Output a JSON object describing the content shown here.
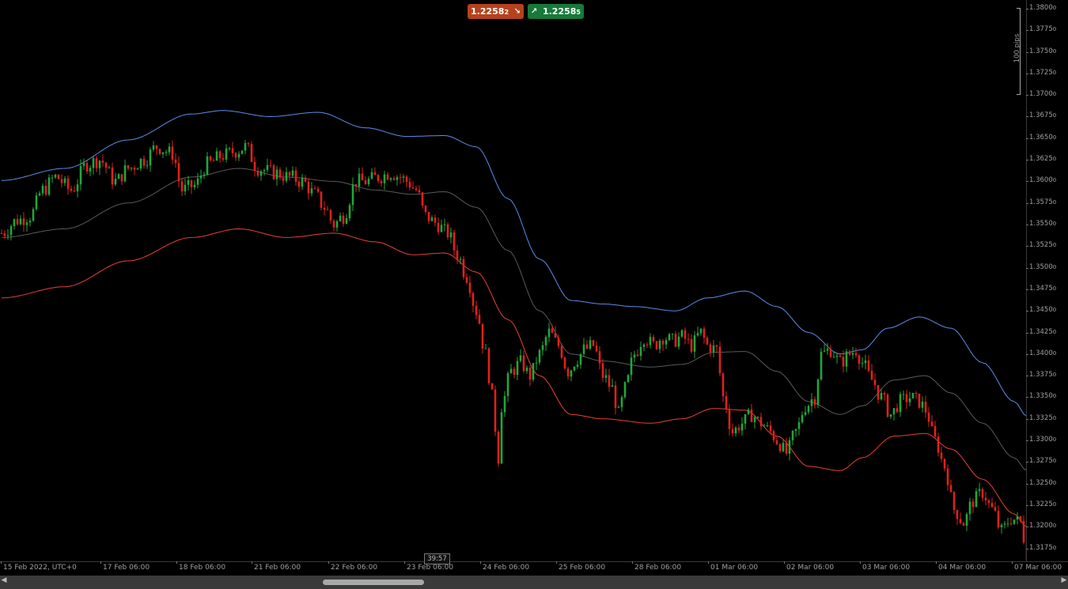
{
  "trade_buttons": {
    "sell_price": "1.2258",
    "sell_price_super": "2",
    "buy_price": "1.2258",
    "buy_price_super": "5",
    "sell_icon": "arrow-down-right-icon",
    "buy_icon": "arrow-up-right-icon",
    "sell_color": "#b5421d",
    "buy_color": "#17793a"
  },
  "pips_scale": "100 pips",
  "countdown": "39:57",
  "scrollbar_icons": {
    "left": "triangle-left-icon",
    "right": "triangle-right-icon"
  },
  "chart_data": {
    "type": "candlestick",
    "ylim": [
      1.316,
      1.381
    ],
    "y_ticks": [
      {
        "value": 1.38,
        "label": "1.3800",
        "sub": "0"
      },
      {
        "value": 1.3775,
        "label": "1.3775",
        "sub": "0"
      },
      {
        "value": 1.375,
        "label": "1.3750",
        "sub": "0"
      },
      {
        "value": 1.3725,
        "label": "1.3725",
        "sub": "0"
      },
      {
        "value": 1.37,
        "label": "1.3700",
        "sub": "0"
      },
      {
        "value": 1.3675,
        "label": "1.3675",
        "sub": "0"
      },
      {
        "value": 1.365,
        "label": "1.3650",
        "sub": "0"
      },
      {
        "value": 1.3625,
        "label": "1.3625",
        "sub": "0"
      },
      {
        "value": 1.36,
        "label": "1.3600",
        "sub": "0"
      },
      {
        "value": 1.3575,
        "label": "1.3575",
        "sub": "0"
      },
      {
        "value": 1.355,
        "label": "1.3550",
        "sub": "0"
      },
      {
        "value": 1.3525,
        "label": "1.3525",
        "sub": "0"
      },
      {
        "value": 1.35,
        "label": "1.3500",
        "sub": "0"
      },
      {
        "value": 1.3475,
        "label": "1.3475",
        "sub": "0"
      },
      {
        "value": 1.345,
        "label": "1.3450",
        "sub": "0"
      },
      {
        "value": 1.3425,
        "label": "1.3425",
        "sub": "0"
      },
      {
        "value": 1.34,
        "label": "1.3400",
        "sub": "0"
      },
      {
        "value": 1.3375,
        "label": "1.3375",
        "sub": "0"
      },
      {
        "value": 1.335,
        "label": "1.3350",
        "sub": "0"
      },
      {
        "value": 1.3325,
        "label": "1.3325",
        "sub": "0"
      },
      {
        "value": 1.33,
        "label": "1.3300",
        "sub": "0"
      },
      {
        "value": 1.3275,
        "label": "1.3275",
        "sub": "0"
      },
      {
        "value": 1.325,
        "label": "1.3250",
        "sub": "0"
      },
      {
        "value": 1.3225,
        "label": "1.3225",
        "sub": "0"
      },
      {
        "value": 1.32,
        "label": "1.3200",
        "sub": "0"
      },
      {
        "value": 1.3175,
        "label": "1.3175",
        "sub": "0"
      }
    ],
    "x_labels": [
      "15 Feb 2022, UTC+0",
      "17 Feb 06:00",
      "18 Feb 06:00",
      "21 Feb 06:00",
      "22 Feb 06:00",
      "23 Feb 06:00",
      "24 Feb 06:00",
      "25 Feb 06:00",
      "28 Feb 06:00",
      "01 Mar 06:00",
      "02 Mar 06:00",
      "03 Mar 06:00",
      "04 Mar 06:00",
      "07 Mar 06:00"
    ],
    "colors": {
      "up": "#1fa83a",
      "down": "#e0211b",
      "upper_band": "#5b8de8",
      "middle_band": "#5a5a5a",
      "lower_band": "#e8403a",
      "background": "#000000"
    },
    "close_path": [
      [
        0,
        1.354
      ],
      [
        5,
        1.3555
      ],
      [
        9,
        1.356
      ],
      [
        13,
        1.359
      ],
      [
        17,
        1.3605
      ],
      [
        22,
        1.359
      ],
      [
        27,
        1.362
      ],
      [
        31,
        1.3625
      ],
      [
        36,
        1.36
      ],
      [
        40,
        1.3615
      ],
      [
        45,
        1.3625
      ],
      [
        49,
        1.364
      ],
      [
        54,
        1.3632
      ],
      [
        57,
        1.359
      ],
      [
        61,
        1.3595
      ],
      [
        65,
        1.362
      ],
      [
        70,
        1.363
      ],
      [
        74,
        1.3635
      ],
      [
        77,
        1.364
      ],
      [
        81,
        1.3615
      ],
      [
        86,
        1.361
      ],
      [
        91,
        1.3605
      ],
      [
        95,
        1.36
      ],
      [
        99,
        1.3585
      ],
      [
        102,
        1.357
      ],
      [
        105,
        1.355
      ],
      [
        108,
        1.356
      ],
      [
        112,
        1.36
      ],
      [
        115,
        1.36
      ],
      [
        119,
        1.3605
      ],
      [
        123,
        1.361
      ],
      [
        126,
        1.3605
      ],
      [
        128,
        1.36
      ],
      [
        131,
        1.359
      ],
      [
        134,
        1.356
      ],
      [
        137,
        1.3552
      ],
      [
        141,
        1.354
      ],
      [
        144,
        1.3515
      ],
      [
        147,
        1.349
      ],
      [
        150,
        1.345
      ],
      [
        153,
        1.34
      ],
      [
        155,
        1.335
      ],
      [
        157,
        1.328
      ],
      [
        158,
        1.334
      ],
      [
        161,
        1.338
      ],
      [
        164,
        1.339
      ],
      [
        167,
        1.3375
      ],
      [
        170,
        1.34
      ],
      [
        173,
        1.3425
      ],
      [
        176,
        1.341
      ],
      [
        179,
        1.338
      ],
      [
        182,
        1.3395
      ],
      [
        184,
        1.3405
      ],
      [
        187,
        1.341
      ],
      [
        190,
        1.3375
      ],
      [
        193,
        1.336
      ],
      [
        195,
        1.333
      ],
      [
        197,
        1.336
      ],
      [
        200,
        1.34
      ],
      [
        203,
        1.342
      ],
      [
        206,
        1.341
      ],
      [
        209,
        1.342
      ],
      [
        212,
        1.3415
      ],
      [
        215,
        1.342
      ],
      [
        218,
        1.341
      ],
      [
        221,
        1.3425
      ],
      [
        223,
        1.341
      ],
      [
        226,
        1.3405
      ],
      [
        228,
        1.335
      ],
      [
        231,
        1.331
      ],
      [
        234,
        1.332
      ],
      [
        237,
        1.333
      ],
      [
        240,
        1.332
      ],
      [
        243,
        1.331
      ],
      [
        245,
        1.33
      ],
      [
        248,
        1.3285
      ],
      [
        251,
        1.331
      ],
      [
        254,
        1.334
      ],
      [
        257,
        1.335
      ],
      [
        259,
        1.34
      ],
      [
        262,
        1.3405
      ],
      [
        265,
        1.339
      ],
      [
        268,
        1.34
      ],
      [
        270,
        1.3405
      ],
      [
        272,
        1.339
      ],
      [
        275,
        1.337
      ],
      [
        278,
        1.335
      ],
      [
        281,
        1.333
      ],
      [
        284,
        1.3345
      ],
      [
        287,
        1.335
      ],
      [
        290,
        1.3345
      ],
      [
        292,
        1.3335
      ],
      [
        295,
        1.33
      ],
      [
        298,
        1.327
      ],
      [
        301,
        1.322
      ],
      [
        304,
        1.3205
      ],
      [
        307,
        1.323
      ],
      [
        310,
        1.324
      ],
      [
        313,
        1.322
      ],
      [
        316,
        1.3195
      ],
      [
        319,
        1.321
      ],
      [
        322,
        1.3205
      ],
      [
        324,
        1.317
      ]
    ],
    "upper_band": [
      [
        0,
        1.3601
      ],
      [
        20,
        1.3615
      ],
      [
        40,
        1.3648
      ],
      [
        60,
        1.3678
      ],
      [
        70,
        1.3682
      ],
      [
        85,
        1.3675
      ],
      [
        100,
        1.368
      ],
      [
        115,
        1.3662
      ],
      [
        128,
        1.3652
      ],
      [
        140,
        1.3653
      ],
      [
        150,
        1.364
      ],
      [
        160,
        1.358
      ],
      [
        170,
        1.351
      ],
      [
        180,
        1.3462
      ],
      [
        190,
        1.3458
      ],
      [
        200,
        1.3455
      ],
      [
        213,
        1.345
      ],
      [
        223,
        1.3465
      ],
      [
        235,
        1.3473
      ],
      [
        245,
        1.3455
      ],
      [
        255,
        1.3425
      ],
      [
        265,
        1.34
      ],
      [
        272,
        1.3405
      ],
      [
        280,
        1.343
      ],
      [
        290,
        1.3443
      ],
      [
        300,
        1.343
      ],
      [
        310,
        1.339
      ],
      [
        320,
        1.3345
      ],
      [
        324,
        1.3328
      ]
    ],
    "middle_band": [
      [
        0,
        1.3535
      ],
      [
        20,
        1.3545
      ],
      [
        40,
        1.3575
      ],
      [
        60,
        1.3605
      ],
      [
        75,
        1.3615
      ],
      [
        90,
        1.3605
      ],
      [
        105,
        1.36
      ],
      [
        118,
        1.359
      ],
      [
        130,
        1.3585
      ],
      [
        140,
        1.3588
      ],
      [
        150,
        1.357
      ],
      [
        160,
        1.352
      ],
      [
        170,
        1.345
      ],
      [
        180,
        1.34
      ],
      [
        190,
        1.3392
      ],
      [
        205,
        1.3385
      ],
      [
        215,
        1.3388
      ],
      [
        225,
        1.3402
      ],
      [
        235,
        1.3403
      ],
      [
        245,
        1.338
      ],
      [
        255,
        1.3345
      ],
      [
        265,
        1.333
      ],
      [
        272,
        1.334
      ],
      [
        282,
        1.337
      ],
      [
        292,
        1.3375
      ],
      [
        300,
        1.3355
      ],
      [
        310,
        1.332
      ],
      [
        320,
        1.328
      ],
      [
        324,
        1.3265
      ]
    ],
    "lower_band": [
      [
        0,
        1.3465
      ],
      [
        20,
        1.3478
      ],
      [
        40,
        1.3508
      ],
      [
        60,
        1.3535
      ],
      [
        75,
        1.3545
      ],
      [
        90,
        1.3535
      ],
      [
        105,
        1.354
      ],
      [
        118,
        1.353
      ],
      [
        130,
        1.3515
      ],
      [
        140,
        1.3517
      ],
      [
        150,
        1.3495
      ],
      [
        160,
        1.344
      ],
      [
        170,
        1.3375
      ],
      [
        180,
        1.333
      ],
      [
        190,
        1.3325
      ],
      [
        205,
        1.332
      ],
      [
        215,
        1.3325
      ],
      [
        225,
        1.3337
      ],
      [
        235,
        1.3335
      ],
      [
        245,
        1.3305
      ],
      [
        255,
        1.327
      ],
      [
        265,
        1.3265
      ],
      [
        272,
        1.328
      ],
      [
        282,
        1.3305
      ],
      [
        292,
        1.3308
      ],
      [
        300,
        1.329
      ],
      [
        310,
        1.3255
      ],
      [
        320,
        1.3215
      ],
      [
        324,
        1.32
      ]
    ]
  }
}
